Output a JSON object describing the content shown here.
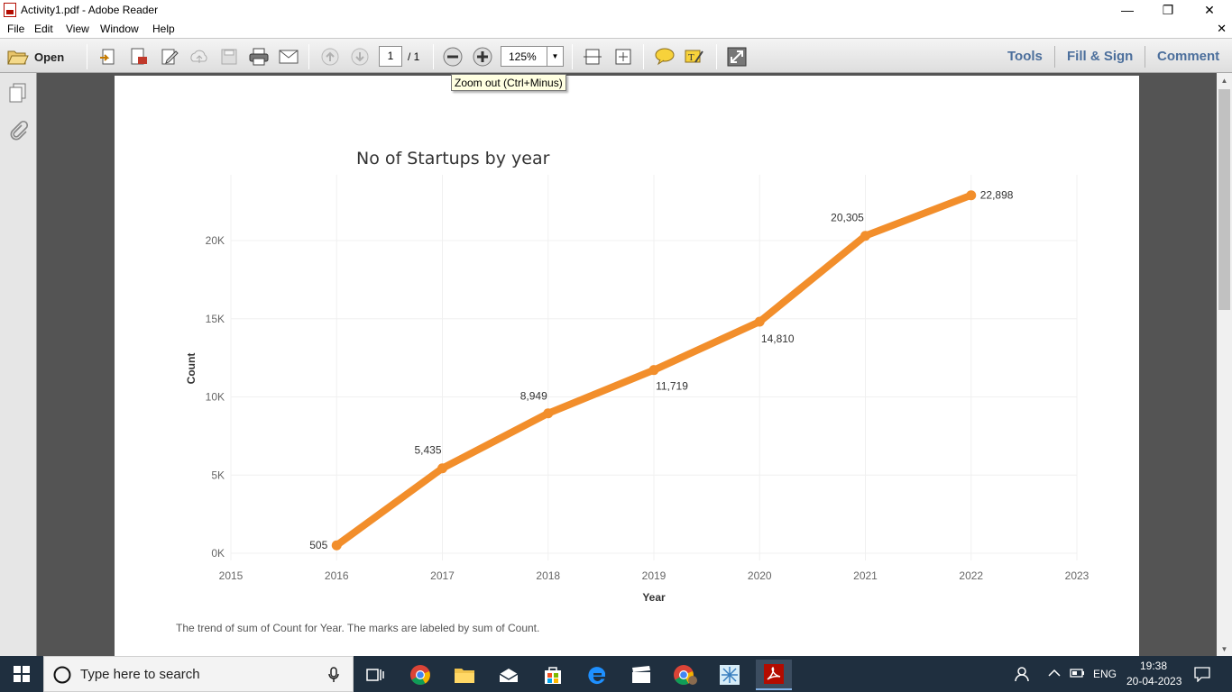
{
  "window": {
    "title": "Activity1.pdf - Adobe Reader",
    "minimize_glyph": "—",
    "maximize_glyph": "❐",
    "close_glyph": "✕"
  },
  "menu": {
    "items": [
      "File",
      "Edit",
      "View",
      "Window",
      "Help"
    ],
    "close_doc_glyph": "✕"
  },
  "toolbar": {
    "open_label": "Open",
    "page_current": "1",
    "page_total": "/ 1",
    "zoom": "125%",
    "tools_label": "Tools",
    "fill_sign_label": "Fill & Sign",
    "comment_label": "Comment"
  },
  "tooltip": {
    "text": "Zoom out (Ctrl+Minus)"
  },
  "chart_data": {
    "type": "line",
    "title": "No of Startups by year",
    "xlabel": "Year",
    "ylabel": "Count",
    "x": [
      2016,
      2017,
      2018,
      2019,
      2020,
      2021,
      2022
    ],
    "values": [
      505,
      5435,
      8949,
      11719,
      14810,
      20305,
      22898
    ],
    "data_labels": [
      "505",
      "5,435",
      "8,949",
      "11,719",
      "14,810",
      "20,305",
      "22,898"
    ],
    "x_ticks": [
      "2015",
      "2016",
      "2017",
      "2018",
      "2019",
      "2020",
      "2021",
      "2022",
      "2023"
    ],
    "y_ticks": [
      "0K",
      "5K",
      "10K",
      "15K",
      "20K"
    ],
    "xlim": [
      2015,
      2023
    ],
    "ylim": [
      0,
      20000
    ],
    "grid": true,
    "line_color": "#f28e2b"
  },
  "caption": "The trend of sum of Count for Year.  The marks are labeled by sum of Count.",
  "taskbar": {
    "search_placeholder": "Type here to search",
    "language": "ENG",
    "time": "19:38",
    "date": "20-04-2023"
  }
}
